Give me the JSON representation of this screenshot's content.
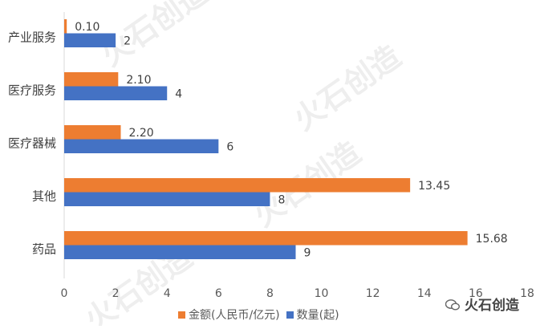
{
  "chart_data": {
    "type": "bar",
    "orientation": "horizontal",
    "categories": [
      "产业服务",
      "医疗服务",
      "医疗器械",
      "其他",
      "药品"
    ],
    "series": [
      {
        "name": "金额(人民币/亿元)",
        "values": [
          0.1,
          2.1,
          2.2,
          13.45,
          15.68
        ],
        "labels": [
          "0.10",
          "2.10",
          "2.20",
          "13.45",
          "15.68"
        ],
        "color": "#ED7D31"
      },
      {
        "name": "数量(起)",
        "values": [
          2,
          4,
          6,
          8,
          9
        ],
        "labels": [
          "2",
          "4",
          "6",
          "8",
          "9"
        ],
        "color": "#4472C4"
      }
    ],
    "xlim": [
      0,
      18
    ],
    "xticks": [
      "0",
      "2",
      "4",
      "6",
      "8",
      "10",
      "12",
      "14",
      "16",
      "18"
    ],
    "grid": false,
    "legend_position": "bottom"
  },
  "watermark": {
    "text": "火石创造"
  },
  "account": {
    "name": "火石创造",
    "icon": "wechat-icon"
  }
}
